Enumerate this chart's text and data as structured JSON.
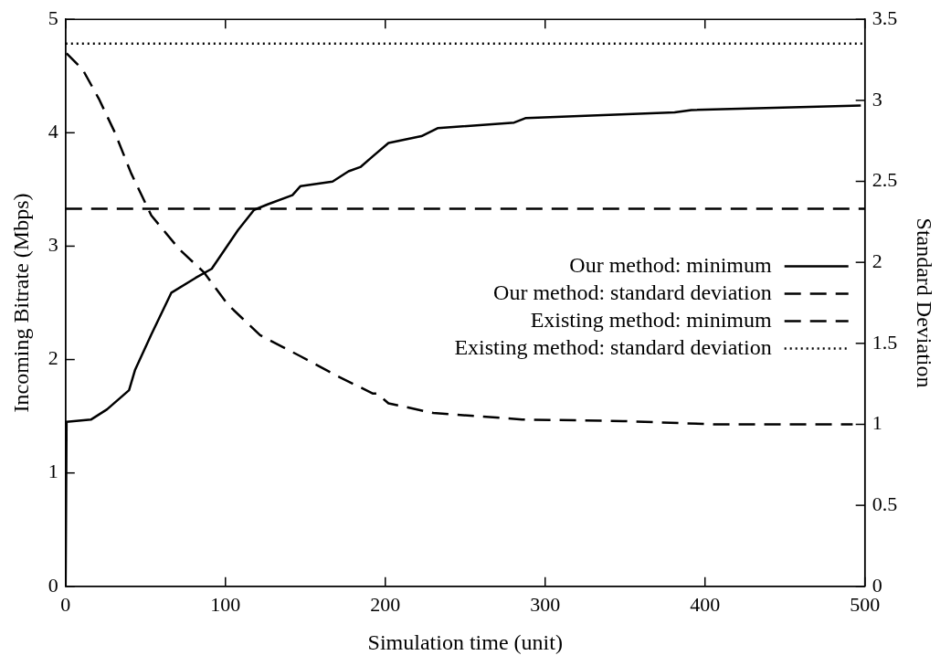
{
  "chart_data": {
    "type": "line",
    "xlabel": "Simulation time (unit)",
    "ylabel": "Incoming Bitrate (Mbps)",
    "y2label": "Standard Deviation",
    "xlim": [
      0,
      500
    ],
    "xticks": [
      0,
      100,
      200,
      300,
      400,
      500
    ],
    "ylim": [
      0,
      5
    ],
    "yticks": [
      0,
      1,
      2,
      3,
      4,
      5
    ],
    "y2lim": [
      0,
      3.5
    ],
    "y2ticks": [
      0,
      0.5,
      1,
      1.5,
      2,
      2.5,
      3,
      3.5
    ],
    "grid": false,
    "legend": "right",
    "marker": "none",
    "series": [
      {
        "name": "Our method: minimum",
        "color": "#000000",
        "line_style": "solid",
        "x": [
          0,
          0.6,
          15.8,
          25.9,
          39.7,
          43.5,
          53.6,
          66.2,
          81.3,
          91.4,
          101.5,
          107.8,
          117.9,
          126.7,
          141.9,
          147,
          167,
          177,
          184.7,
          192,
          202,
          222.6,
          232.7,
          280.6,
          288,
          381,
          391.5,
          497.5
        ],
        "values": [
          0,
          1.45,
          1.47,
          1.56,
          1.73,
          1.91,
          2.22,
          2.59,
          2.72,
          2.8,
          3.01,
          3.14,
          3.32,
          3.37,
          3.45,
          3.53,
          3.57,
          3.66,
          3.7,
          3.79,
          3.91,
          3.97,
          4.04,
          4.09,
          4.13,
          4.18,
          4.2,
          4.24
        ]
      },
      {
        "name": "Our method: standard deviation",
        "color": "#000000",
        "line_style": "dashed",
        "axis": "y2",
        "x": [
          0.6,
          10.7,
          20.8,
          30.9,
          41,
          53.6,
          71.2,
          86.4,
          101.5,
          121.7,
          147,
          169.6,
          192.3,
          194.8,
          202,
          230,
          285.6,
          348.7,
          406.7,
          492.4
        ],
        "values": [
          3.29,
          3.19,
          3.01,
          2.8,
          2.55,
          2.29,
          2.08,
          1.94,
          1.74,
          1.55,
          1.42,
          1.3,
          1.19,
          1.19,
          1.13,
          1.07,
          1.03,
          1.02,
          1,
          1
        ]
      },
      {
        "name": "Existing method: minimum",
        "color": "#000000",
        "line_style": "dashed",
        "x": [
          0,
          500
        ],
        "values": [
          3.33,
          3.33
        ]
      },
      {
        "name": "Existing method: standard deviation",
        "color": "#000000",
        "line_style": "dotted",
        "axis": "y2",
        "x": [
          0,
          500
        ],
        "values": [
          3.35,
          3.35
        ]
      }
    ]
  }
}
